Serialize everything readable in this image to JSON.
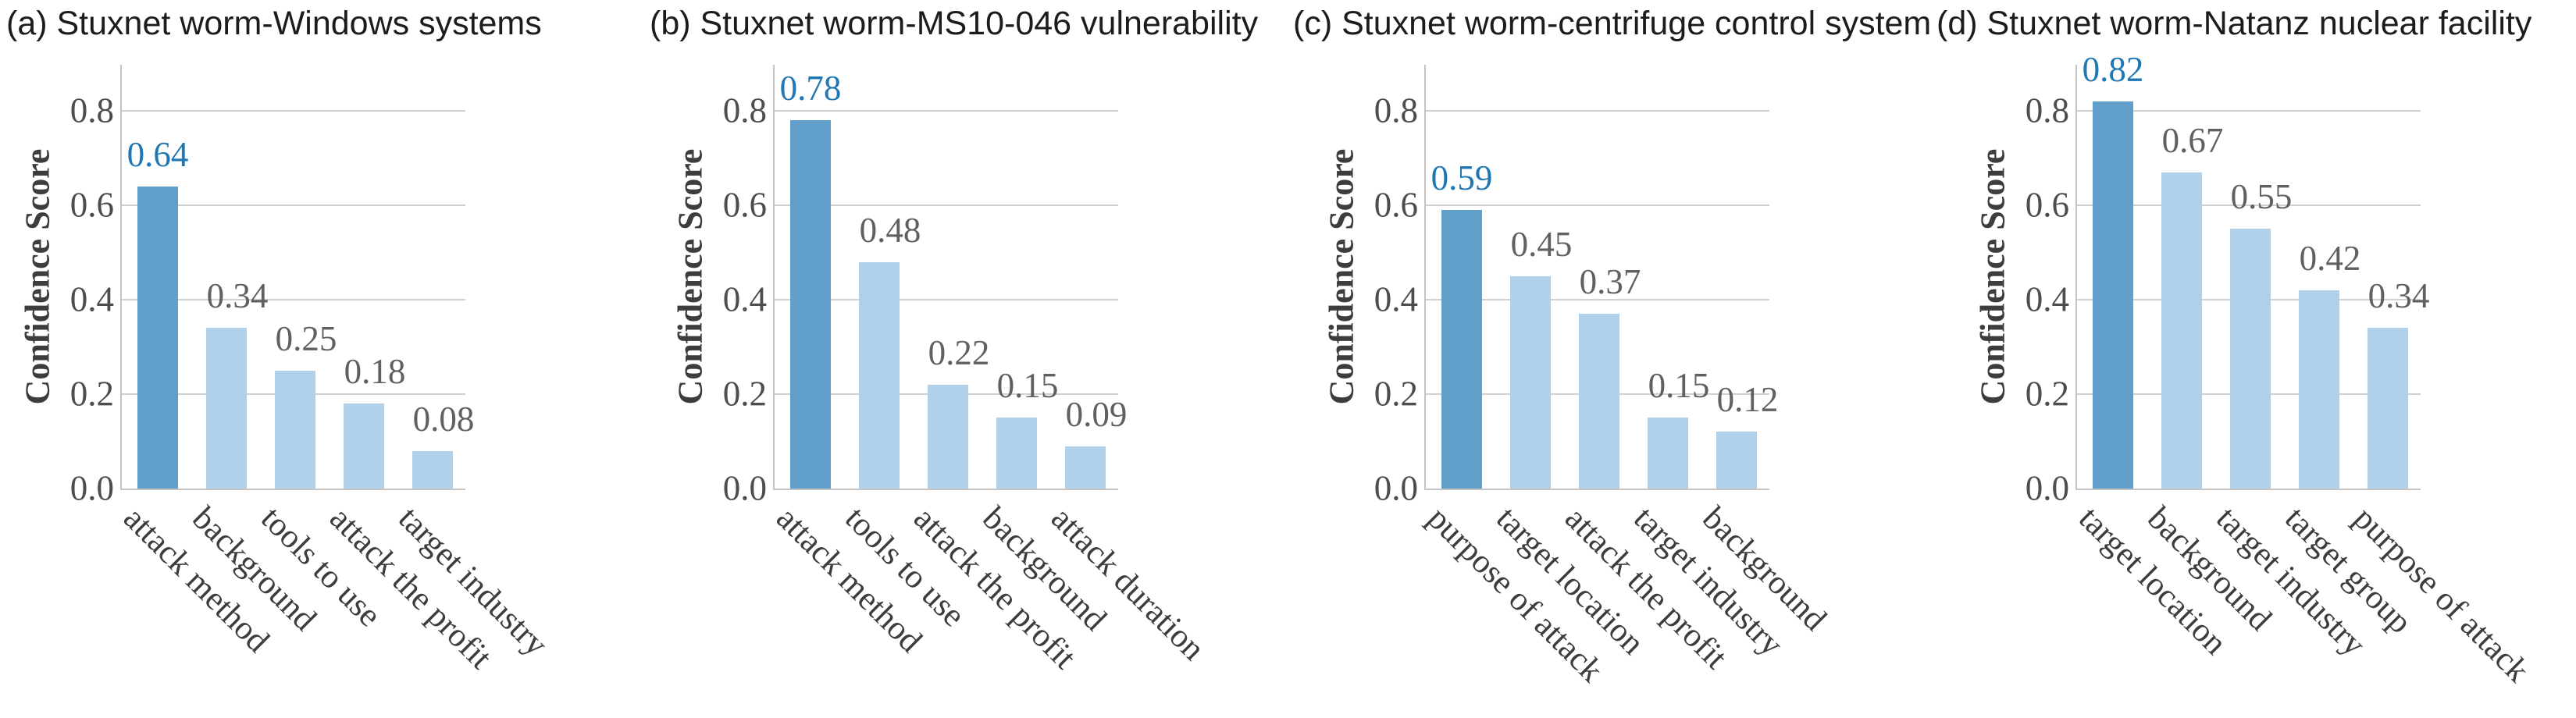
{
  "figure": {
    "background": "#ffffff",
    "ylabel": "Confidence Score"
  },
  "colors": {
    "bar": "#afd0e8",
    "bar_highlight": "#5f9fca",
    "value_label": "#606060",
    "value_label_highlight": "#1f77b4",
    "tick_label": "#4d4d4d",
    "category_label": "#3d3d3d",
    "axis_label": "#3d3d3d",
    "title": "#1c1c1c",
    "gridline": "#d0d0d0",
    "spine": "#c4c4c4"
  },
  "chart_data": [
    {
      "type": "bar",
      "title": "(a) Stuxnet worm-Windows systems",
      "ylabel": "Confidence Score",
      "categories": [
        "attack method",
        "background",
        "tools to use",
        "attack the profit",
        "target industry"
      ],
      "values": [
        0.64,
        0.34,
        0.25,
        0.18,
        0.08
      ],
      "value_labels": [
        "0.64",
        "0.34",
        "0.25",
        "0.18",
        "0.08"
      ],
      "highlight_index": 0,
      "ylim": [
        0.0,
        0.9
      ],
      "yticks": [
        0.0,
        0.2,
        0.4,
        0.6,
        0.8
      ],
      "ytick_labels": [
        "0.0",
        "0.2",
        "0.4",
        "0.6",
        "0.8"
      ],
      "grid": true,
      "legend": "none"
    },
    {
      "type": "bar",
      "title": "(b) Stuxnet worm-MS10-046 vulnerability",
      "ylabel": "Confidence Score",
      "categories": [
        "attack method",
        "tools to use",
        "attack the profit",
        "background",
        "attack duration"
      ],
      "values": [
        0.78,
        0.48,
        0.22,
        0.15,
        0.09
      ],
      "value_labels": [
        "0.78",
        "0.48",
        "0.22",
        "0.15",
        "0.09"
      ],
      "highlight_index": 0,
      "ylim": [
        0.0,
        0.9
      ],
      "yticks": [
        0.0,
        0.2,
        0.4,
        0.6,
        0.8
      ],
      "ytick_labels": [
        "0.0",
        "0.2",
        "0.4",
        "0.6",
        "0.8"
      ],
      "grid": true,
      "legend": "none"
    },
    {
      "type": "bar",
      "title": "(c) Stuxnet worm-centrifuge control system",
      "ylabel": "Confidence Score",
      "categories": [
        "purpose of attack",
        "target location",
        "attack the profit",
        "target industry",
        "background"
      ],
      "values": [
        0.59,
        0.45,
        0.37,
        0.15,
        0.12
      ],
      "value_labels": [
        "0.59",
        "0.45",
        "0.37",
        "0.15",
        "0.12"
      ],
      "highlight_index": 0,
      "ylim": [
        0.0,
        0.9
      ],
      "yticks": [
        0.0,
        0.2,
        0.4,
        0.6,
        0.8
      ],
      "ytick_labels": [
        "0.0",
        "0.2",
        "0.4",
        "0.6",
        "0.8"
      ],
      "grid": true,
      "legend": "none"
    },
    {
      "type": "bar",
      "title": "(d) Stuxnet worm-Natanz nuclear facility",
      "ylabel": "Confidence Score",
      "categories": [
        "target location",
        "background",
        "target industry",
        "target group",
        "purpose of attack"
      ],
      "values": [
        0.82,
        0.67,
        0.55,
        0.42,
        0.34
      ],
      "value_labels": [
        "0.82",
        "0.67",
        "0.55",
        "0.42",
        "0.34"
      ],
      "highlight_index": 0,
      "ylim": [
        0.0,
        0.9
      ],
      "yticks": [
        0.0,
        0.2,
        0.4,
        0.6,
        0.8
      ],
      "ytick_labels": [
        "0.0",
        "0.2",
        "0.4",
        "0.6",
        "0.8"
      ],
      "grid": true,
      "legend": "none"
    }
  ]
}
